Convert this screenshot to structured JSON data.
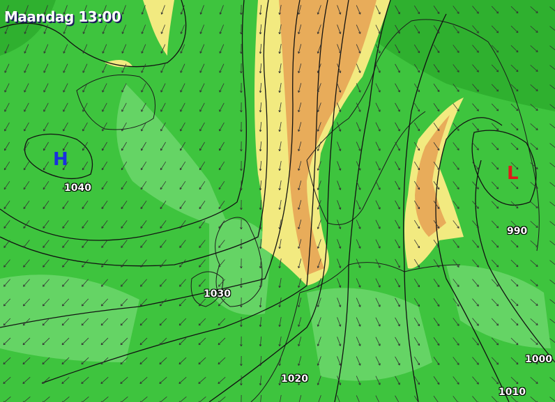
{
  "header": {
    "title": "Maandag 13:00"
  },
  "pressure_centers": [
    {
      "type": "H",
      "color": "#1a2fe0"
    },
    {
      "type": "L",
      "color": "#e01a1a"
    }
  ],
  "isobar_labels": [
    "1040",
    "990",
    "1030",
    "1020",
    "1000",
    "1010"
  ],
  "colors": {
    "green_dark": "#2aa82a",
    "green": "#3ec43e",
    "green_light": "#6fd86f",
    "yellow": "#f2ea80",
    "orange": "#e8ac5a",
    "isobar": "#111111"
  }
}
